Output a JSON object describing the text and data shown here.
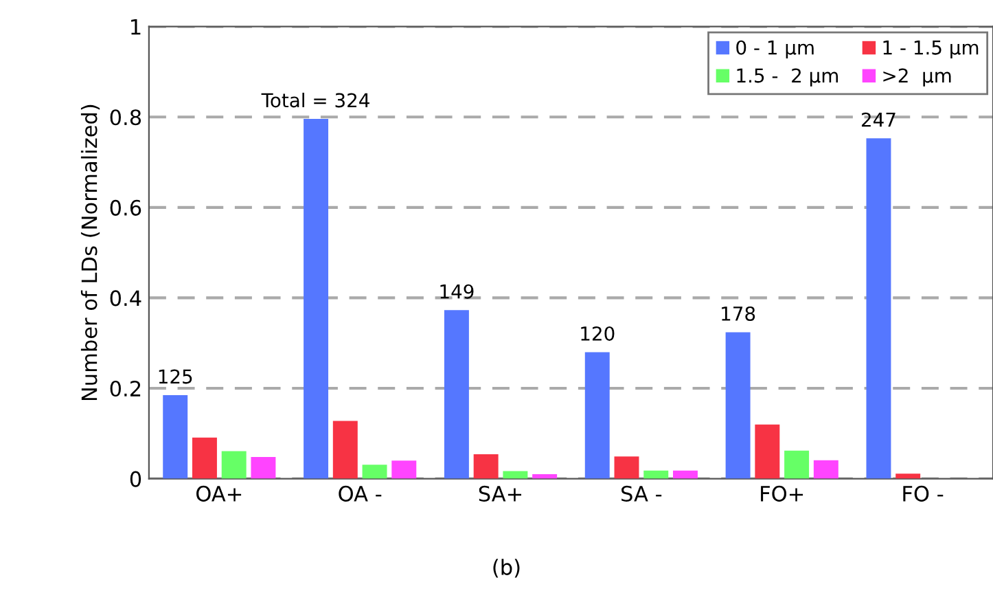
{
  "chart_data": {
    "type": "bar",
    "ylabel": "Number of LDs (Normalized)",
    "categories": [
      "OA+",
      "OA -",
      "SA+",
      "SA -",
      "FO+",
      "FO -"
    ],
    "series": [
      {
        "name": "0 - 1 µm",
        "color": "#5577ff",
        "values": [
          0.185,
          0.796,
          0.373,
          0.28,
          0.324,
          0.753
        ]
      },
      {
        "name": "1 - 1.5 µm",
        "color": "#f73344",
        "values": [
          0.091,
          0.128,
          0.054,
          0.049,
          0.12,
          0.011
        ]
      },
      {
        "name": "1.5 -  2 µm",
        "color": "#66ff66",
        "values": [
          0.061,
          0.031,
          0.017,
          0.018,
          0.062,
          0
        ]
      },
      {
        "name": ">2  µm",
        "color": "#ff44ff",
        "values": [
          0.048,
          0.04,
          0.01,
          0.018,
          0.041,
          0
        ]
      }
    ],
    "ylim": [
      0,
      1
    ],
    "yticks": [
      0,
      0.2,
      0.4,
      0.6,
      0.8,
      1
    ],
    "grid": "y",
    "legend": "top right",
    "annotations": [
      "125",
      "Total = 324",
      "149",
      "120",
      "178",
      "247",
      "(b)"
    ]
  }
}
